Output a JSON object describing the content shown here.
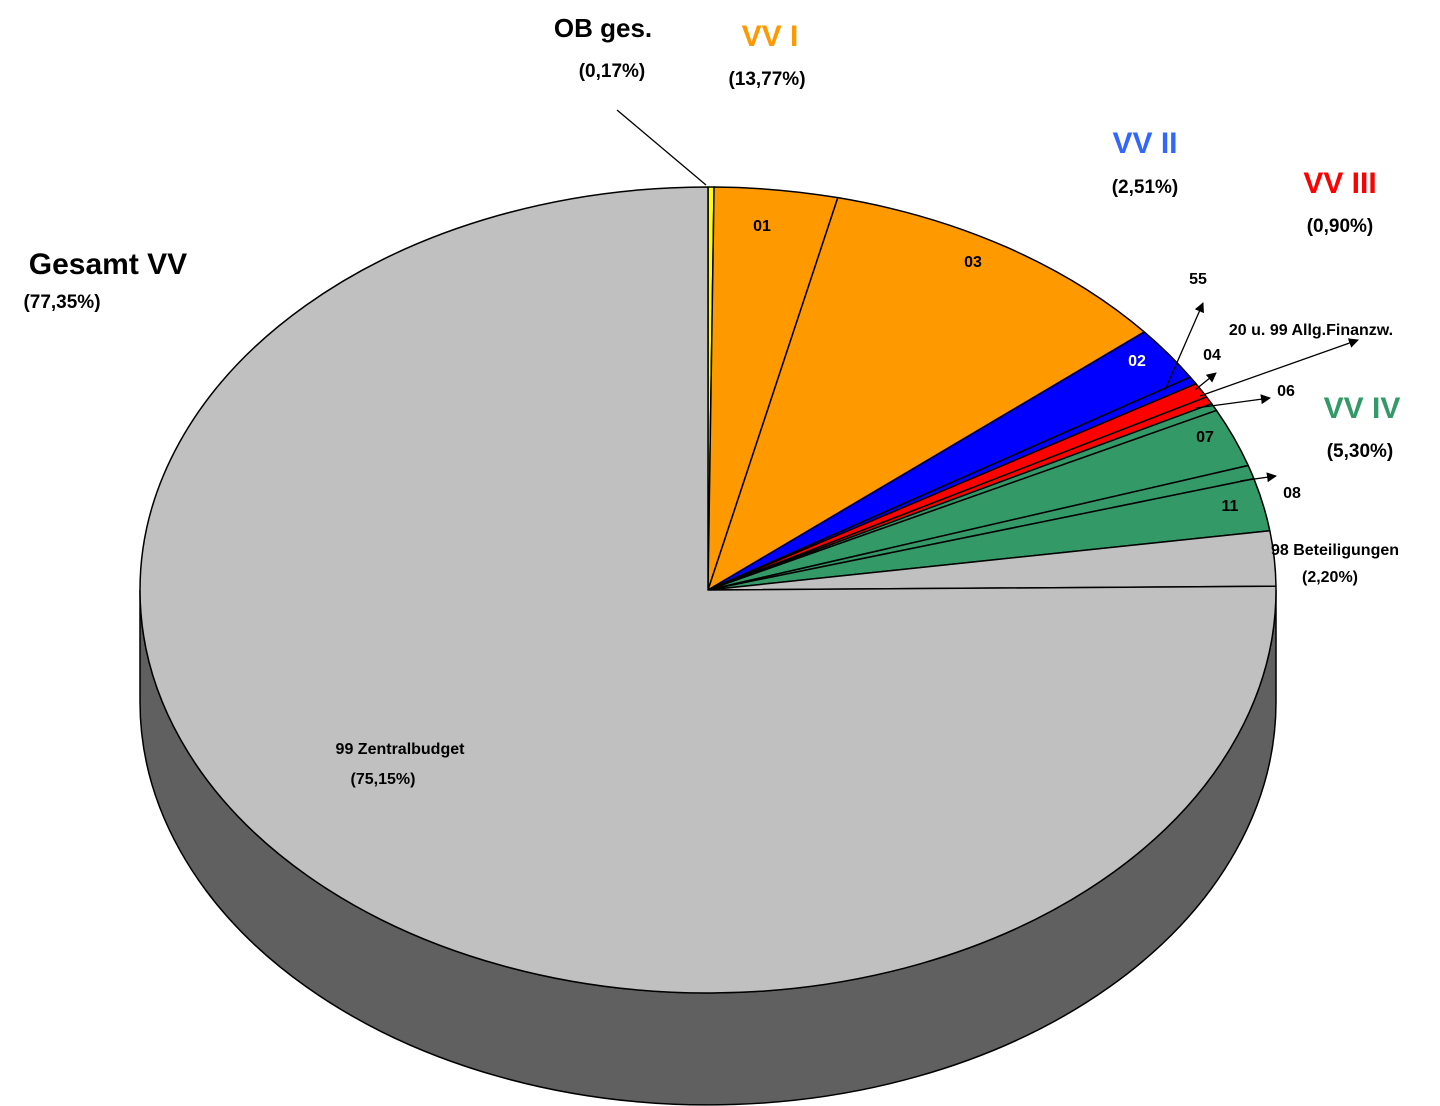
{
  "chart_data": {
    "type": "pie",
    "categories": [
      null,
      "01",
      "03",
      "02",
      "55",
      "04",
      "20 u. 99 Allg.Finanzw.",
      "06",
      "07",
      "08",
      "11",
      "98 Beteiligungen",
      "99 Zentralbudget"
    ],
    "values": [
      0.17,
      3.5,
      10.27,
      2.2,
      0.31,
      0.6,
      0.3,
      0.3,
      2.35,
      0.55,
      2.1,
      2.2,
      75.15
    ],
    "value_labels": [
      null,
      null,
      null,
      null,
      null,
      null,
      null,
      null,
      null,
      null,
      null,
      "(2,20%)",
      "(75,15%)"
    ],
    "colors": [
      "#ffff00",
      "#ff9900",
      "#ff9900",
      "#0000ff",
      "#0000ff",
      "#ff0000",
      "#ff0000",
      "#339966",
      "#339966",
      "#339966",
      "#339966",
      "#c0c0c0",
      "#c0c0c0"
    ],
    "groups": [
      {
        "name": "OB ges.",
        "value": 0.17,
        "value_label": "(0,17%)",
        "color": "#000000"
      },
      {
        "name": "VV I",
        "value": 13.77,
        "value_label": "(13,77%)",
        "color": "#ff9900"
      },
      {
        "name": "VV II",
        "value": 2.51,
        "value_label": "(2,51%)",
        "color": "#3366ff"
      },
      {
        "name": "VV III",
        "value": 0.9,
        "value_label": "(0,90%)",
        "color": "#ff0000"
      },
      {
        "name": "VV IV",
        "value": 5.3,
        "value_label": "(5,30%)",
        "color": "#339966"
      },
      {
        "name": "Gesamt VV",
        "value": 77.35,
        "value_label": "(77,35%)",
        "color": "#000000"
      }
    ]
  }
}
